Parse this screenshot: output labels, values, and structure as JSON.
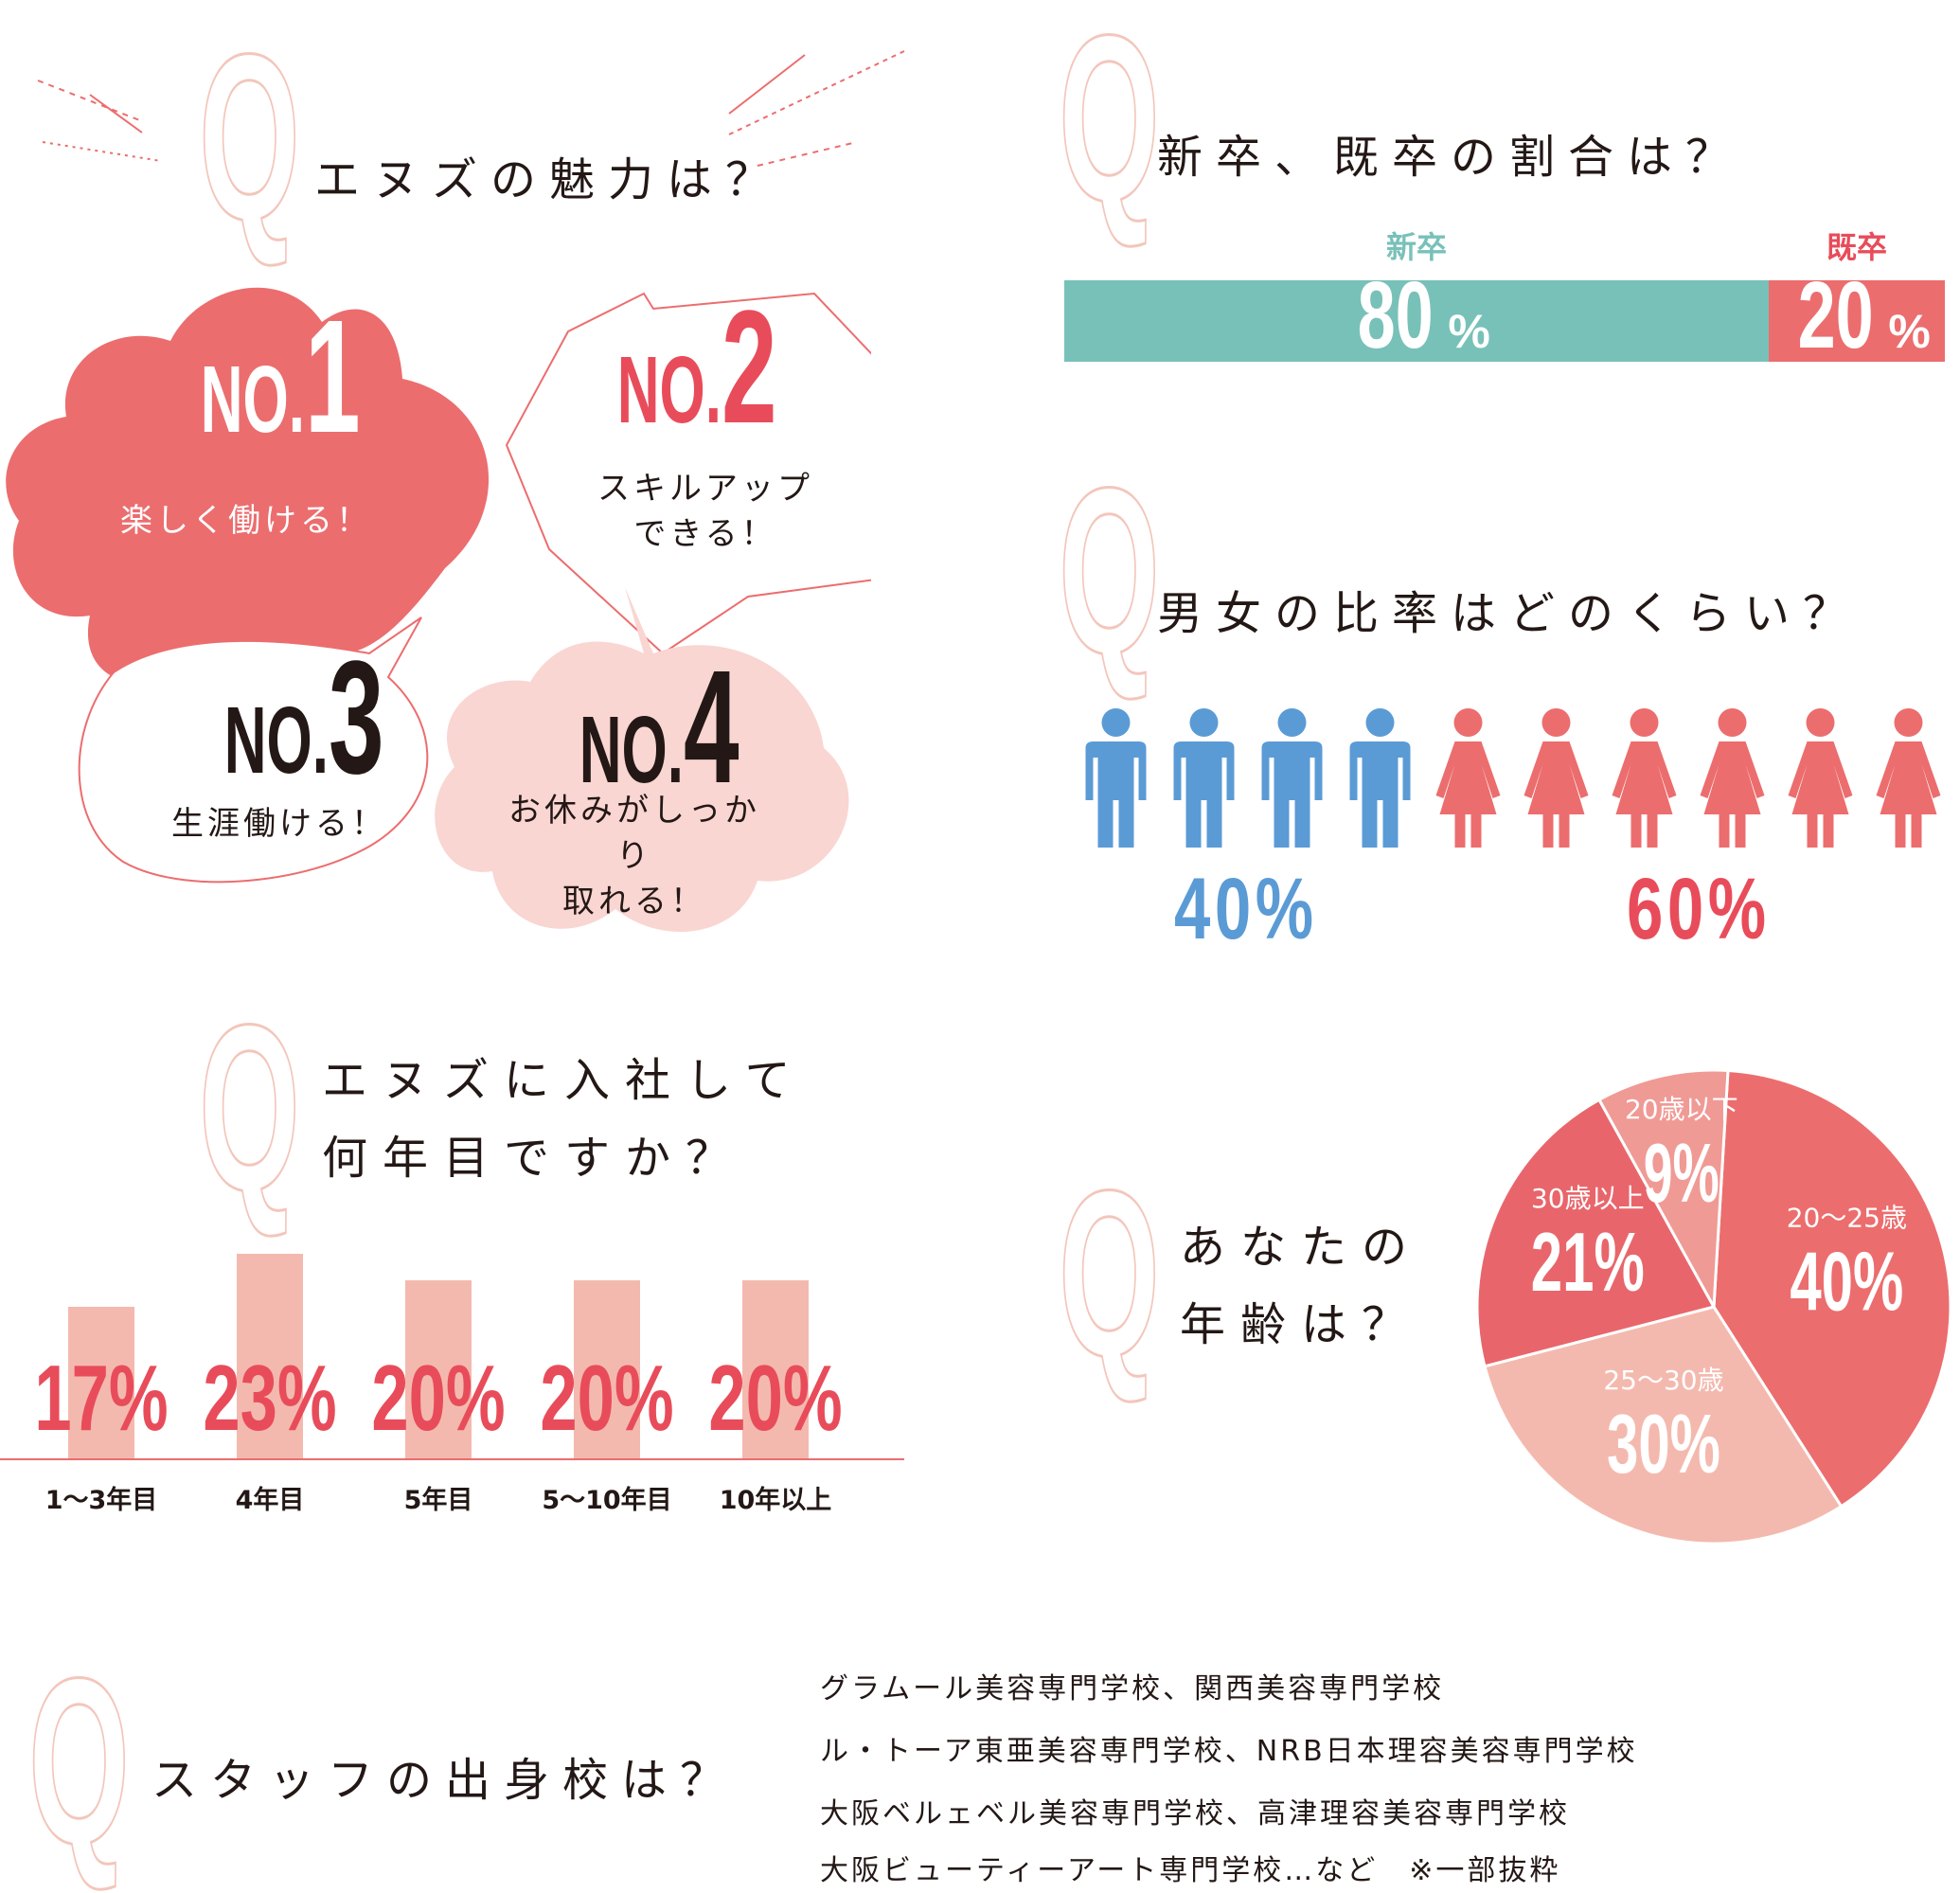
{
  "colors": {
    "accent": "#ec6d6e",
    "accent_dark": "#e84c5a",
    "pink_light": "#f9d6d2",
    "salmon": "#f4b9ae",
    "teal": "#78c1b8",
    "blue": "#5b9bd5",
    "q_outline": "#f3c6bb"
  },
  "q_letter": "Q",
  "appeal": {
    "title": "エヌズの魅力は？",
    "items": [
      {
        "prefix": "NO.",
        "num": "1",
        "caption": "楽しく働ける！"
      },
      {
        "prefix": "NO.",
        "num": "2",
        "caption": "スキルアップ\nできる！"
      },
      {
        "prefix": "NO.",
        "num": "3",
        "caption": "生涯働ける！"
      },
      {
        "prefix": "NO.",
        "num": "4",
        "caption": "お休みがしっかり\n取れる！"
      }
    ]
  },
  "graduates": {
    "title": "新卒、既卒の割合は？",
    "segments": [
      {
        "label": "新卒",
        "value": "80",
        "unit": "%"
      },
      {
        "label": "既卒",
        "value": "20",
        "unit": "%"
      }
    ]
  },
  "gender": {
    "title": "男女の比率はどのくらい？",
    "male_pct": "40%",
    "female_pct": "60%",
    "male_icon": "male-person-icon",
    "female_icon": "female-person-icon",
    "male_count": 4,
    "female_count": 6
  },
  "tenure": {
    "title": "エヌズに入社して\n何年目ですか？"
  },
  "age": {
    "title": "あなたの\n年齢は？"
  },
  "schools": {
    "title": "スタッフの出身校は？",
    "lines": [
      "グラムール美容専門学校、関西美容専門学校",
      "ル・トーア東亜美容専門学校、NRB日本理容美容専門学校",
      "大阪ベルェベル美容専門学校、高津理容美容専門学校",
      "大阪ビューティーアート専門学校…など　※一部抜粋"
    ]
  },
  "chart_data": [
    {
      "type": "bar",
      "title": "新卒、既卒の割合は？",
      "categories": [
        "新卒",
        "既卒"
      ],
      "values": [
        80,
        20
      ],
      "unit": "%"
    },
    {
      "type": "bar",
      "title": "男女の比率はどのくらい？",
      "categories": [
        "男",
        "女"
      ],
      "values": [
        40,
        60
      ],
      "unit": "%"
    },
    {
      "type": "bar",
      "title": "エヌズに入社して何年目ですか？",
      "categories": [
        "1〜3年目",
        "4年目",
        "5年目",
        "5〜10年目",
        "10年以上"
      ],
      "values": [
        17,
        23,
        20,
        20,
        20
      ],
      "labels": [
        "17%",
        "23%",
        "20%",
        "20%",
        "20%"
      ],
      "unit": "%"
    },
    {
      "type": "pie",
      "title": "あなたの年齢は？",
      "categories": [
        "20〜25歳",
        "25〜30歳",
        "30歳以上",
        "20歳以下"
      ],
      "values": [
        40,
        30,
        21,
        9
      ],
      "labels": [
        "40%",
        "30%",
        "21%",
        "9%"
      ],
      "colors": [
        "#ec6d6e",
        "#f4b9ae",
        "#e8666b",
        "#f09a95"
      ]
    }
  ]
}
